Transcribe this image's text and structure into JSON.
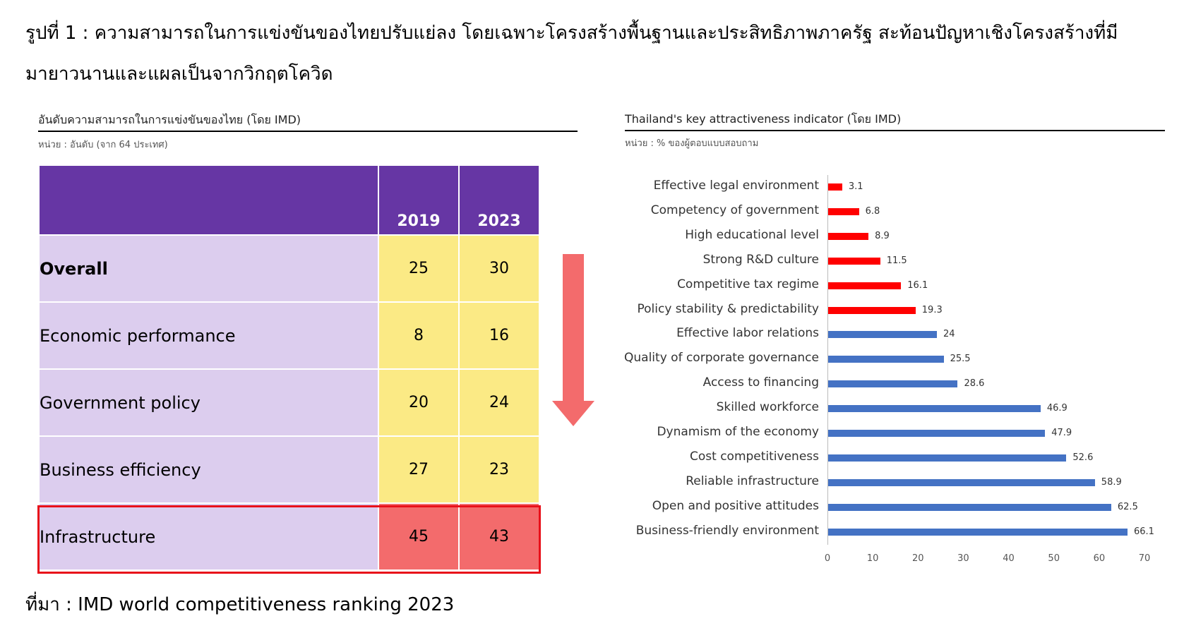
{
  "header": {
    "line1": "รูปที่ 1 : ความสามารถในการแข่งขันของไทยปรับแย่ลง โดยเฉพาะโครงสร้างพื้นฐานและประสิทธิภาพภาครัฐ สะท้อนปัญหาเชิงโครงสร้างที่มี",
    "line2": "มายาวนานและแผลเป็นจากวิกฤตโควิด"
  },
  "left": {
    "title": "อันดับความสามารถในการแข่งขันของไทย  (โดย IMD)",
    "unit": "หน่วย : อันดับ (จาก 64 ประเทศ)",
    "columns": [
      "",
      "2019",
      "2023"
    ],
    "rows": [
      [
        "Overall",
        "25",
        "30"
      ],
      [
        "Economic performance",
        "8",
        "16"
      ],
      [
        "Government policy",
        "20",
        "24"
      ],
      [
        "Business efficiency",
        "27",
        "23"
      ],
      [
        "Infrastructure",
        "45",
        "43"
      ]
    ]
  },
  "source": "ที่มา : IMD world competitiveness ranking 2023",
  "colors": {
    "purple": "#6636a4",
    "lavender": "#dccdee",
    "yellow": "#fbea85",
    "red": "#f36b6c",
    "bar_red": "#ff0000",
    "bar_blue": "#4472c4"
  },
  "chart_data": {
    "type": "bar",
    "orientation": "horizontal",
    "title": "Thailand's key attractiveness indicator (โดย IMD)",
    "unit": "หน่วย : % ของผู้ตอบแบบสอบถาม",
    "categories": [
      "Effective legal environment",
      "Competency of government",
      "High educational level",
      "Strong R&D culture",
      "Competitive tax regime",
      "Policy stability & predictability",
      "Effective labor relations",
      "Quality of corporate governance",
      "Access to financing",
      "Skilled workforce",
      "Dynamism of the economy",
      "Cost competitiveness",
      "Reliable infrastructure",
      "Open and positive attitudes",
      "Business-friendly environment"
    ],
    "values": [
      3.1,
      6.8,
      8.9,
      11.5,
      16.1,
      19.3,
      24,
      25.5,
      28.6,
      46.9,
      47.9,
      52.6,
      58.9,
      62.5,
      66.1
    ],
    "highlighted_count": 6,
    "xlim": [
      0,
      70
    ],
    "xticks": [
      0,
      10,
      20,
      30,
      40,
      50,
      60,
      70
    ]
  }
}
